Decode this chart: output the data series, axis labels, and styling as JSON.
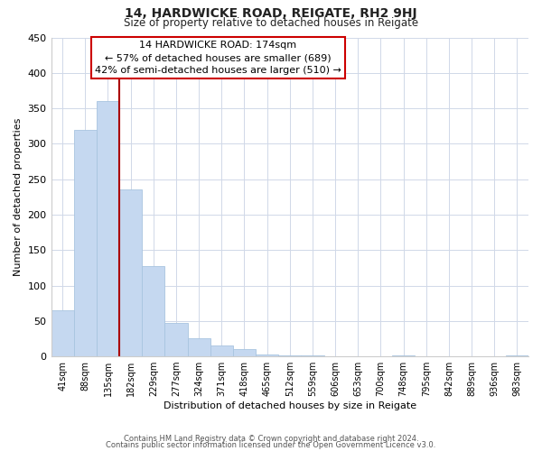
{
  "title": "14, HARDWICKE ROAD, REIGATE, RH2 9HJ",
  "subtitle": "Size of property relative to detached houses in Reigate",
  "xlabel": "Distribution of detached houses by size in Reigate",
  "ylabel": "Number of detached properties",
  "bar_labels": [
    "41sqm",
    "88sqm",
    "135sqm",
    "182sqm",
    "229sqm",
    "277sqm",
    "324sqm",
    "371sqm",
    "418sqm",
    "465sqm",
    "512sqm",
    "559sqm",
    "606sqm",
    "653sqm",
    "700sqm",
    "748sqm",
    "795sqm",
    "842sqm",
    "889sqm",
    "936sqm",
    "983sqm"
  ],
  "bar_values": [
    65,
    320,
    360,
    235,
    127,
    47,
    25,
    15,
    10,
    3,
    1,
    1,
    0,
    0,
    0,
    1,
    0,
    0,
    0,
    0,
    1
  ],
  "bar_color": "#c5d8f0",
  "bar_edge_color": "#a8c4e0",
  "vline_color": "#aa0000",
  "annotation_title": "14 HARDWICKE ROAD: 174sqm",
  "annotation_line1": "← 57% of detached houses are smaller (689)",
  "annotation_line2": "42% of semi-detached houses are larger (510) →",
  "annotation_box_color": "#ffffff",
  "annotation_box_edge": "#cc0000",
  "ylim": [
    0,
    450
  ],
  "yticks": [
    0,
    50,
    100,
    150,
    200,
    250,
    300,
    350,
    400,
    450
  ],
  "footer1": "Contains HM Land Registry data © Crown copyright and database right 2024.",
  "footer2": "Contains public sector information licensed under the Open Government Licence v3.0.",
  "background_color": "#ffffff",
  "grid_color": "#d0d8e8"
}
